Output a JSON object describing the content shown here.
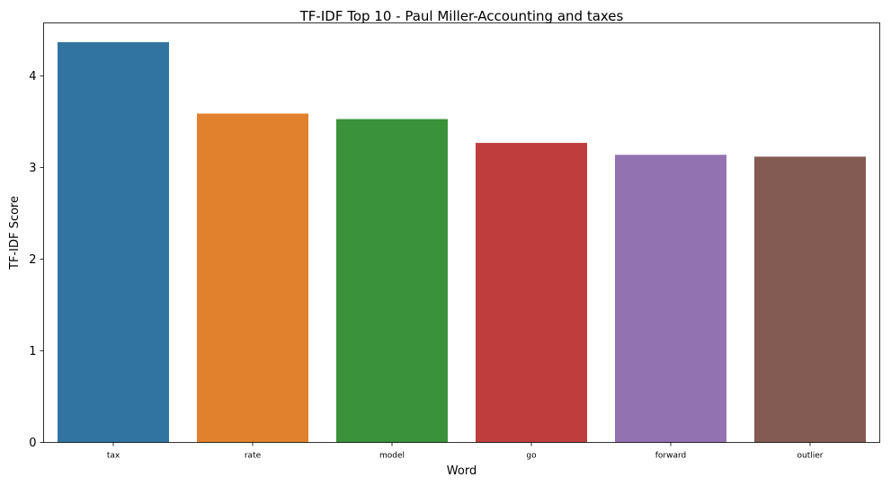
{
  "chart_data": {
    "type": "bar",
    "title": "TF-IDF Top 10 - Paul Miller-Accounting and taxes",
    "xlabel": "Word",
    "ylabel": "TF-IDF Score",
    "categories": [
      "tax",
      "rate",
      "model",
      "go",
      "forward",
      "outlier"
    ],
    "values": [
      4.37,
      3.59,
      3.53,
      3.27,
      3.14,
      3.12
    ],
    "colors": [
      "#3274a1",
      "#e1812c",
      "#3a923a",
      "#c03d3e",
      "#9372b2",
      "#845b53"
    ],
    "ylim": [
      0,
      4.58
    ],
    "yticks": [
      0,
      1,
      2,
      3,
      4
    ],
    "ytick_labels": [
      "0",
      "1",
      "2",
      "3",
      "4"
    ],
    "grid": false,
    "legend": "none"
  }
}
